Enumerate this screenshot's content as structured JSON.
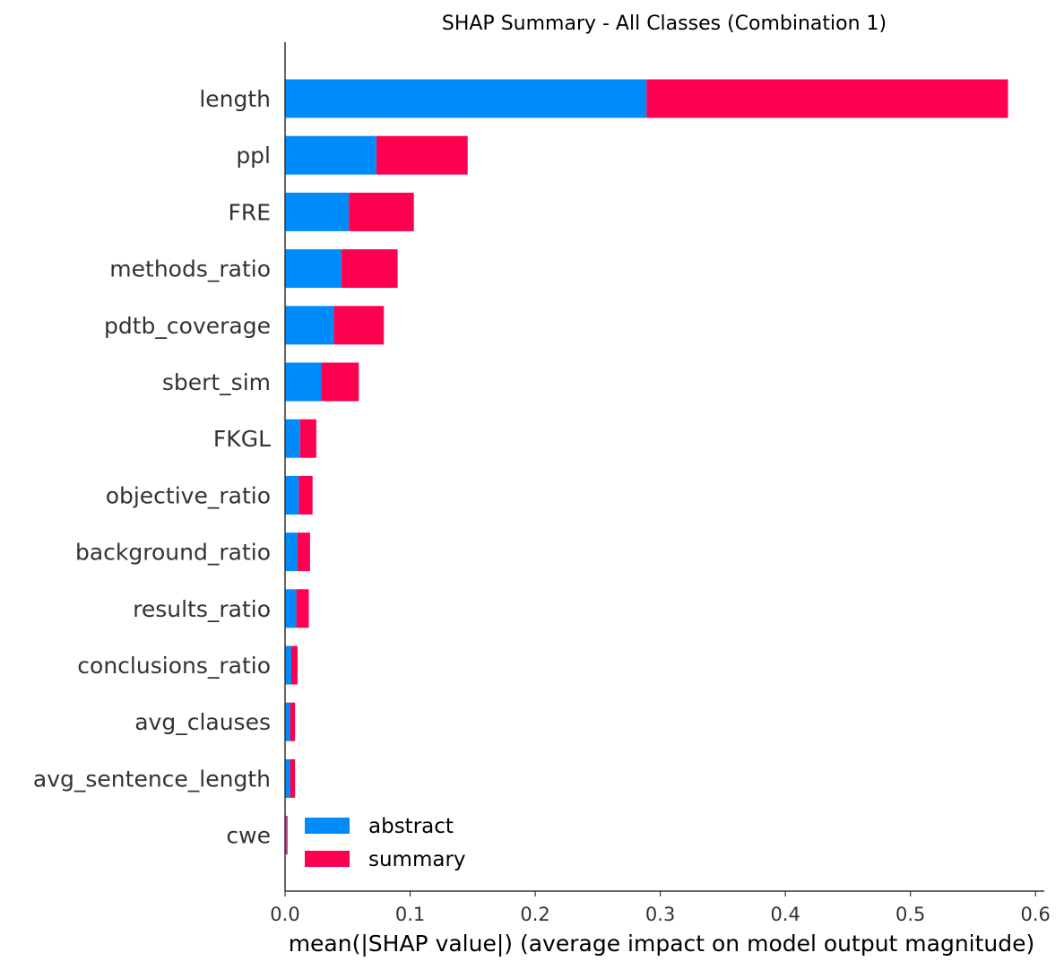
{
  "chart_data": {
    "type": "bar",
    "orientation": "horizontal",
    "stacked": true,
    "title": "SHAP Summary - All Classes (Combination 1)",
    "xlabel": "mean(|SHAP value|) (average impact on model output magnitude)",
    "ylabel": "",
    "xlim": [
      0,
      0.607
    ],
    "xticks": [
      "0.0",
      "0.1",
      "0.2",
      "0.3",
      "0.4",
      "0.5",
      "0.6"
    ],
    "grid": false,
    "legend_position": "lower-left",
    "categories": [
      "length",
      "ppl",
      "FRE",
      "methods_ratio",
      "pdtb_coverage",
      "sbert_sim",
      "FKGL",
      "objective_ratio",
      "background_ratio",
      "results_ratio",
      "conclusions_ratio",
      "avg_clauses",
      "avg_sentence_length",
      "cwe"
    ],
    "series": [
      {
        "name": "abstract",
        "color": "#008bfb",
        "values": [
          0.289,
          0.073,
          0.051,
          0.045,
          0.039,
          0.029,
          0.012,
          0.011,
          0.01,
          0.009,
          0.005,
          0.004,
          0.004,
          0.001
        ]
      },
      {
        "name": "summary",
        "color": "#ff0051",
        "values": [
          0.289,
          0.073,
          0.052,
          0.045,
          0.04,
          0.03,
          0.013,
          0.011,
          0.01,
          0.01,
          0.005,
          0.004,
          0.004,
          0.001
        ]
      }
    ]
  }
}
